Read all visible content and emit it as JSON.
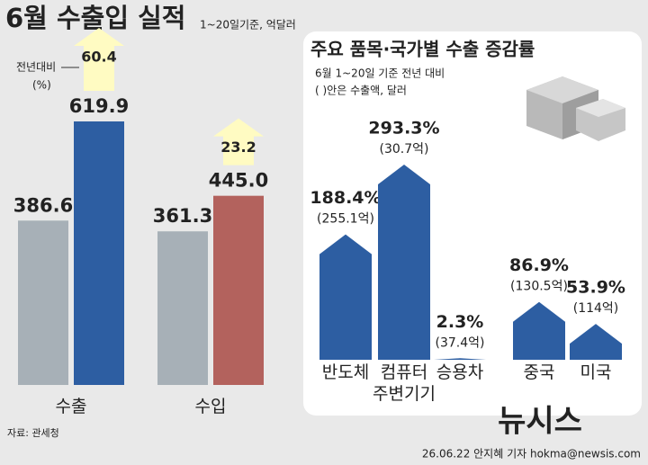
{
  "chart_data": [
    {
      "type": "grouped-bar",
      "title": "6월 수출입 실적",
      "subtitle": "1~20일기준, 억달러",
      "categories": [
        "수출",
        "수입"
      ],
      "series": [
        {
          "color": "#a7b0b7",
          "values": [
            386.6,
            361.3
          ]
        },
        {
          "colors": [
            "#2d5ea2",
            "#b3625d"
          ],
          "values": [
            619.9,
            445
          ],
          "value_labels": [
            "619.9",
            "445.0"
          ]
        }
      ],
      "growth_label": [
        "전년대비",
        "(%)"
      ],
      "growth_values": [
        60.4,
        23.2
      ],
      "growth_color": "#fffbc2"
    },
    {
      "type": "arrow-bar",
      "title": "주요 품목·국가별 수출 증감률",
      "subtitle": "6월 1~20일 기준 전년 대비",
      "note": "( )안은 수출액, 달러",
      "categories": [
        "반도체",
        "컴퓨터 주변기기",
        "승용차",
        "중국",
        "미국"
      ],
      "values": [
        188.4,
        293.3,
        2.3,
        86.9,
        53.9
      ],
      "value_labels": [
        "188.4%",
        "293.3%",
        "2.3%",
        "86.9%",
        "53.9%"
      ],
      "amount_labels": [
        "(255.1억)",
        "(30.7억)",
        "(37.4억)",
        "(130.5억)",
        "(114억)"
      ],
      "color": "#2d5ea2"
    }
  ],
  "footer": {
    "source": "자료: 관세청",
    "credit": "26.06.22 안지혜 기자 hokma@newsis.com",
    "logo": "뉴시스"
  }
}
